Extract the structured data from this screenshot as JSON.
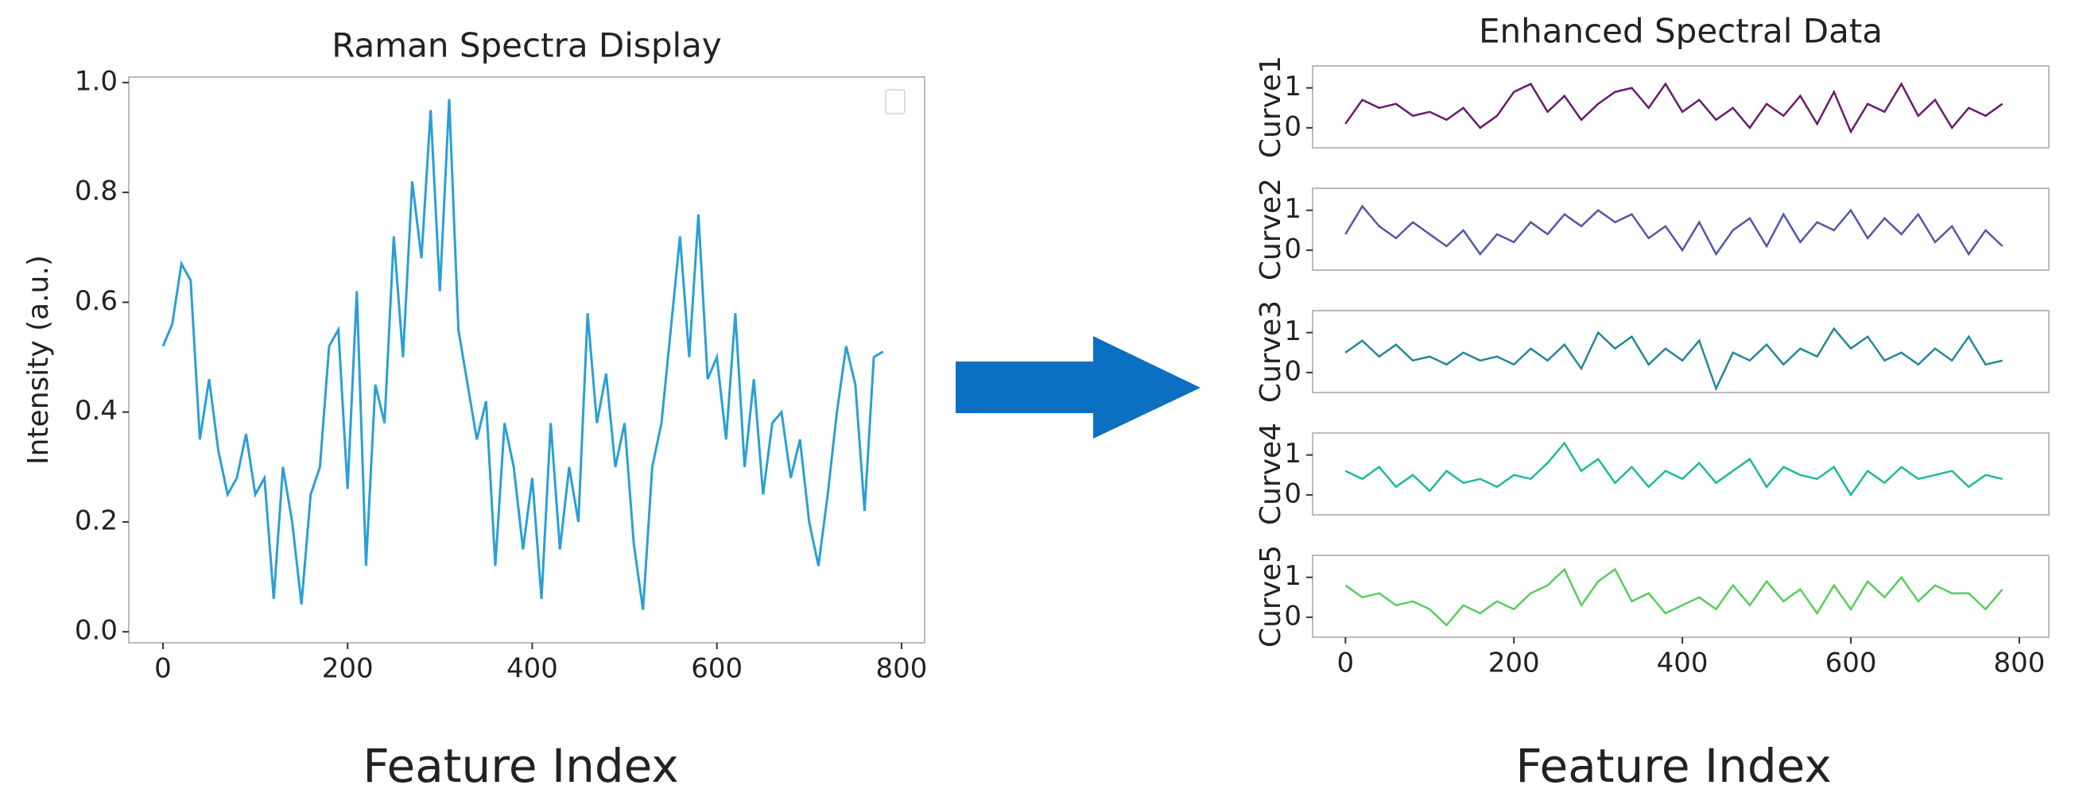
{
  "chart_data": [
    {
      "type": "line",
      "title": "Raman Spectra Display",
      "y_label": "Intensity (a.u.)",
      "x_label": "Feature Index",
      "color": "#2a9fd6",
      "xlim": [
        -37,
        825
      ],
      "xticks": [
        0,
        200,
        400,
        600,
        800
      ],
      "ylim": [
        -0.02,
        1.01
      ],
      "yticks": [
        {
          "value": 0,
          "label": "0.0"
        },
        0.2,
        0.4,
        0.6,
        0.8,
        {
          "value": 1,
          "label": "1.0"
        }
      ],
      "x": [
        0,
        10,
        20,
        30,
        40,
        50,
        60,
        70,
        80,
        90,
        100,
        110,
        120,
        130,
        140,
        150,
        160,
        170,
        180,
        190,
        200,
        210,
        220,
        230,
        240,
        250,
        260,
        270,
        280,
        290,
        300,
        310,
        320,
        330,
        340,
        350,
        360,
        370,
        380,
        390,
        400,
        410,
        420,
        430,
        440,
        450,
        460,
        470,
        480,
        490,
        500,
        510,
        520,
        530,
        540,
        550,
        560,
        570,
        580,
        590,
        600,
        610,
        620,
        630,
        640,
        650,
        660,
        670,
        680,
        690,
        700,
        710,
        720,
        730,
        740,
        750,
        760,
        770,
        780
      ],
      "values": [
        0.52,
        0.56,
        0.67,
        0.64,
        0.35,
        0.46,
        0.33,
        0.25,
        0.28,
        0.36,
        0.25,
        0.28,
        0.06,
        0.3,
        0.2,
        0.05,
        0.25,
        0.3,
        0.52,
        0.55,
        0.26,
        0.62,
        0.12,
        0.45,
        0.38,
        0.72,
        0.5,
        0.82,
        0.68,
        0.95,
        0.62,
        0.97,
        0.55,
        0.45,
        0.35,
        0.42,
        0.12,
        0.38,
        0.3,
        0.15,
        0.28,
        0.06,
        0.38,
        0.15,
        0.3,
        0.2,
        0.58,
        0.38,
        0.47,
        0.3,
        0.38,
        0.16,
        0.04,
        0.3,
        0.38,
        0.55,
        0.72,
        0.5,
        0.76,
        0.46,
        0.5,
        0.35,
        0.58,
        0.3,
        0.46,
        0.25,
        0.38,
        0.4,
        0.28,
        0.35,
        0.2,
        0.12,
        0.25,
        0.4,
        0.52,
        0.45,
        0.22,
        0.5,
        0.51
      ]
    },
    {
      "type": "small-multiples",
      "title": "Enhanced Spectral Data",
      "x_label": "Feature Index",
      "xlim": [
        -39,
        835
      ],
      "xticks": [
        0,
        200,
        400,
        600,
        800
      ],
      "ylim": [
        -0.5,
        1.55
      ],
      "yticks": [
        0,
        1
      ],
      "x": [
        0,
        20,
        40,
        60,
        80,
        100,
        120,
        140,
        160,
        180,
        200,
        220,
        240,
        260,
        280,
        300,
        320,
        340,
        360,
        380,
        400,
        420,
        440,
        460,
        480,
        500,
        520,
        540,
        560,
        580,
        600,
        620,
        640,
        660,
        680,
        700,
        720,
        740,
        760,
        780
      ],
      "series": [
        {
          "name": "Curve1",
          "color": "#6a1b6e",
          "values": [
            0.1,
            0.7,
            0.5,
            0.6,
            0.3,
            0.4,
            0.2,
            0.5,
            0.0,
            0.3,
            0.9,
            1.1,
            0.4,
            0.8,
            0.2,
            0.6,
            0.9,
            1.0,
            0.5,
            1.1,
            0.4,
            0.7,
            0.2,
            0.5,
            0.0,
            0.6,
            0.3,
            0.8,
            0.1,
            0.9,
            -0.1,
            0.6,
            0.4,
            1.1,
            0.3,
            0.7,
            0.0,
            0.5,
            0.3,
            0.6
          ]
        },
        {
          "name": "Curve2",
          "color": "#5457a8",
          "values": [
            0.4,
            1.1,
            0.6,
            0.3,
            0.7,
            0.4,
            0.1,
            0.5,
            -0.1,
            0.4,
            0.2,
            0.7,
            0.4,
            0.9,
            0.6,
            1.0,
            0.7,
            0.9,
            0.3,
            0.6,
            0.0,
            0.7,
            -0.1,
            0.5,
            0.8,
            0.1,
            0.9,
            0.2,
            0.7,
            0.5,
            1.0,
            0.3,
            0.8,
            0.4,
            0.9,
            0.2,
            0.6,
            -0.1,
            0.5,
            0.1
          ]
        },
        {
          "name": "Curve3",
          "color": "#23879a",
          "values": [
            0.5,
            0.8,
            0.4,
            0.7,
            0.3,
            0.4,
            0.2,
            0.5,
            0.3,
            0.4,
            0.2,
            0.6,
            0.3,
            0.7,
            0.1,
            1.0,
            0.6,
            0.9,
            0.2,
            0.6,
            0.3,
            0.8,
            -0.4,
            0.5,
            0.3,
            0.7,
            0.2,
            0.6,
            0.4,
            1.1,
            0.6,
            0.9,
            0.3,
            0.5,
            0.2,
            0.6,
            0.3,
            0.9,
            0.2,
            0.3
          ]
        },
        {
          "name": "Curve4",
          "color": "#1fb99a",
          "values": [
            0.6,
            0.4,
            0.7,
            0.2,
            0.5,
            0.1,
            0.6,
            0.3,
            0.4,
            0.2,
            0.5,
            0.4,
            0.8,
            1.3,
            0.6,
            0.9,
            0.3,
            0.7,
            0.2,
            0.6,
            0.4,
            0.8,
            0.3,
            0.6,
            0.9,
            0.2,
            0.7,
            0.5,
            0.4,
            0.7,
            0.0,
            0.6,
            0.3,
            0.7,
            0.4,
            0.5,
            0.6,
            0.2,
            0.5,
            0.4
          ]
        },
        {
          "name": "Curve5",
          "color": "#55cf5a",
          "values": [
            0.8,
            0.5,
            0.6,
            0.3,
            0.4,
            0.2,
            -0.2,
            0.3,
            0.1,
            0.4,
            0.2,
            0.6,
            0.8,
            1.2,
            0.3,
            0.9,
            1.2,
            0.4,
            0.6,
            0.1,
            0.3,
            0.5,
            0.2,
            0.8,
            0.3,
            0.9,
            0.4,
            0.7,
            0.1,
            0.8,
            0.2,
            0.9,
            0.5,
            1.0,
            0.4,
            0.8,
            0.6,
            0.6,
            0.2,
            0.7
          ]
        }
      ]
    }
  ]
}
